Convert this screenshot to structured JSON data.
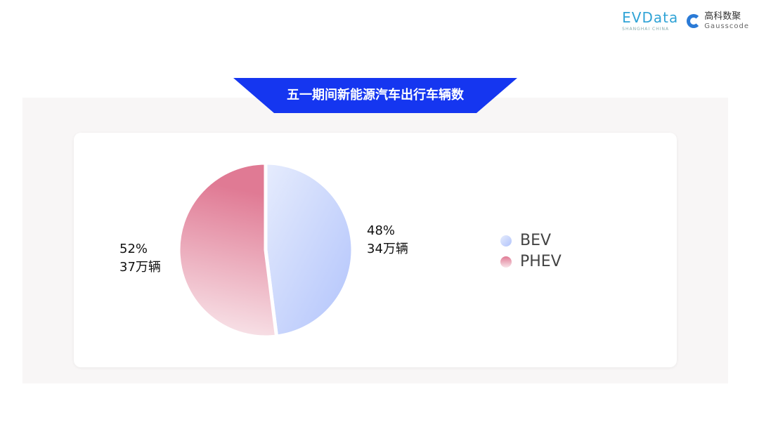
{
  "logos": {
    "evdata": "EVData",
    "evdata_sub": "SHANGHAI CHINA",
    "gausscode_cn": "高科数聚",
    "gausscode_en": "Gausscode"
  },
  "title": "五一期间新能源汽车出行车辆数",
  "colors": {
    "banner": "#1536f0",
    "bev": "#b6c7fb",
    "phev": "#e07a94"
  },
  "chart_data": {
    "type": "pie",
    "title": "五一期间新能源汽车出行车辆数",
    "categories": [
      "BEV",
      "PHEV"
    ],
    "values": [
      48,
      52
    ],
    "units_label": [
      "34万辆",
      "37万辆"
    ],
    "percent_label": [
      "48%",
      "52%"
    ],
    "legend": "right"
  }
}
